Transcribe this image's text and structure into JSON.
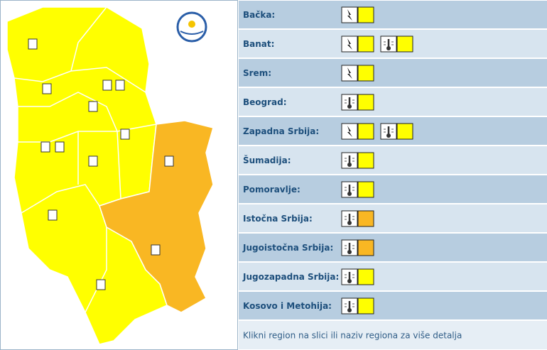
{
  "regions": [
    {
      "name": "Bačka:",
      "warnings": [
        {
          "icon": "lightning",
          "color": "#ffff00"
        }
      ]
    },
    {
      "name": "Banat:",
      "warnings": [
        {
          "icon": "lightning",
          "color": "#ffff00"
        },
        {
          "icon": "heat",
          "color": "#ffff00"
        }
      ]
    },
    {
      "name": "Srem:",
      "warnings": [
        {
          "icon": "lightning",
          "color": "#ffff00"
        }
      ]
    },
    {
      "name": "Beograd:",
      "warnings": [
        {
          "icon": "heat",
          "color": "#ffff00"
        }
      ]
    },
    {
      "name": "Zapadna Srbija:",
      "warnings": [
        {
          "icon": "lightning",
          "color": "#ffff00"
        },
        {
          "icon": "heat",
          "color": "#ffff00"
        }
      ]
    },
    {
      "name": "Šumadija:",
      "warnings": [
        {
          "icon": "heat",
          "color": "#ffff00"
        }
      ]
    },
    {
      "name": "Pomoravlje:",
      "warnings": [
        {
          "icon": "heat",
          "color": "#ffff00"
        }
      ]
    },
    {
      "name": "Istočna Srbija:",
      "warnings": [
        {
          "icon": "heat",
          "color": "#f9b723"
        }
      ]
    },
    {
      "name": "Jugoistočna Srbija:",
      "warnings": [
        {
          "icon": "heat",
          "color": "#f9b723"
        }
      ]
    },
    {
      "name": "Jugozapadna Srbija:",
      "warnings": [
        {
          "icon": "heat",
          "color": "#ffff00"
        }
      ]
    },
    {
      "name": "Kosovo i Metohija:",
      "warnings": [
        {
          "icon": "heat",
          "color": "#ffff00"
        }
      ]
    }
  ],
  "footer": "Klikni region na slici ili naziv regiona za više detalja"
}
